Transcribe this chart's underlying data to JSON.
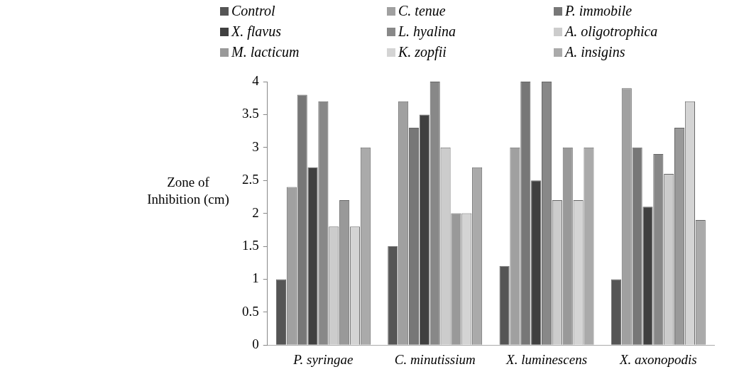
{
  "chart_data": {
    "type": "bar",
    "ylabel": "Zone of Inhibition (cm)",
    "categories": [
      "P. syringae",
      "C. minutissium",
      "X. luminescens",
      "X. axonopodis"
    ],
    "series": [
      {
        "name": "Control",
        "color": "#555555",
        "values": [
          1.0,
          1.5,
          1.2,
          1.0
        ]
      },
      {
        "name": "C. tenue",
        "color": "#a0a0a0",
        "values": [
          2.4,
          3.7,
          3.0,
          3.9
        ]
      },
      {
        "name": "P. immobile",
        "color": "#777777",
        "values": [
          3.8,
          3.3,
          4.0,
          3.0
        ]
      },
      {
        "name": "X. flavus",
        "color": "#404040",
        "values": [
          2.7,
          3.5,
          2.5,
          2.1
        ]
      },
      {
        "name": "L. hyalina",
        "color": "#888888",
        "values": [
          3.7,
          4.0,
          4.0,
          2.9
        ]
      },
      {
        "name": "A. oligotrophica",
        "color": "#cccccc",
        "values": [
          1.8,
          3.0,
          2.2,
          2.6
        ]
      },
      {
        "name": "M. lacticum",
        "color": "#999999",
        "values": [
          2.2,
          2.0,
          3.0,
          3.3
        ]
      },
      {
        "name": "K. zopfii",
        "color": "#d4d4d4",
        "values": [
          1.8,
          2.0,
          2.2,
          3.7
        ]
      },
      {
        "name": "A. insigins",
        "color": "#aaaaaa",
        "values": [
          3.0,
          2.7,
          3.0,
          1.9
        ]
      }
    ],
    "ylim": [
      0,
      4
    ],
    "yticks": [
      0,
      0.5,
      1,
      1.5,
      2,
      2.5,
      3,
      3.5,
      4
    ],
    "grid": false,
    "legend": "top"
  }
}
